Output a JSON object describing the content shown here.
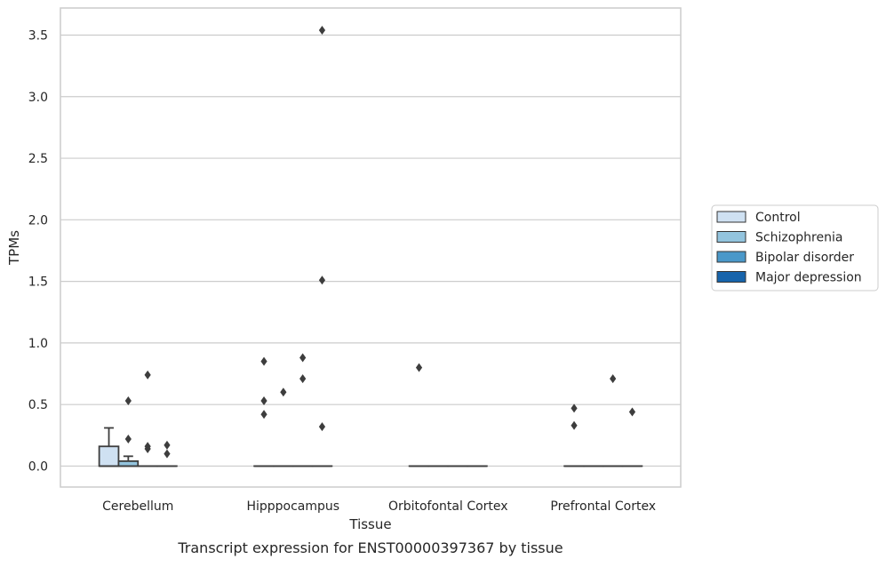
{
  "chart_data": {
    "type": "boxplot",
    "xlabel": "Tissue",
    "ylabel": "TPMs",
    "caption": "Transcript expression for ENST00000397367 by tissue",
    "ylim": [
      -0.17,
      3.72
    ],
    "yticks": [
      0.0,
      0.5,
      1.0,
      1.5,
      2.0,
      2.5,
      3.0,
      3.5
    ],
    "ytick_labels": [
      "0.0",
      "0.5",
      "1.0",
      "1.5",
      "2.0",
      "2.5",
      "3.0",
      "3.5"
    ],
    "grid": "horizontal",
    "legend_position": "right",
    "categories": [
      "Cerebellum",
      "Hipppocampus",
      "Orbitofontal Cortex",
      "Prefrontal Cortex"
    ],
    "series": [
      {
        "name": "Control",
        "color": "#cfe1f2",
        "boxes": [
          {
            "q1": 0.0,
            "median": 0.0,
            "q3": 0.16,
            "whisker_low": 0.0,
            "whisker_high": 0.31,
            "outliers": []
          },
          {
            "q1": 0.0,
            "median": 0.0,
            "q3": 0.0,
            "whisker_low": 0.0,
            "whisker_high": 0.0,
            "outliers": [
              0.85,
              0.53,
              0.42
            ]
          },
          {
            "q1": 0.0,
            "median": 0.0,
            "q3": 0.0,
            "whisker_low": 0.0,
            "whisker_high": 0.0,
            "outliers": [
              0.8
            ]
          },
          {
            "q1": 0.0,
            "median": 0.0,
            "q3": 0.0,
            "whisker_low": 0.0,
            "whisker_high": 0.0,
            "outliers": [
              0.47,
              0.33
            ]
          }
        ]
      },
      {
        "name": "Schizophrenia",
        "color": "#93c4de",
        "boxes": [
          {
            "q1": 0.0,
            "median": 0.0,
            "q3": 0.04,
            "whisker_low": 0.0,
            "whisker_high": 0.08,
            "outliers": [
              0.53,
              0.22
            ]
          },
          {
            "q1": 0.0,
            "median": 0.0,
            "q3": 0.0,
            "whisker_low": 0.0,
            "whisker_high": 0.0,
            "outliers": [
              0.6
            ]
          },
          {
            "q1": 0.0,
            "median": 0.0,
            "q3": 0.0,
            "whisker_low": 0.0,
            "whisker_high": 0.0,
            "outliers": []
          },
          {
            "q1": 0.0,
            "median": 0.0,
            "q3": 0.0,
            "whisker_low": 0.0,
            "whisker_high": 0.0,
            "outliers": []
          }
        ]
      },
      {
        "name": "Bipolar disorder",
        "color": "#4a98c9",
        "boxes": [
          {
            "q1": 0.0,
            "median": 0.0,
            "q3": 0.0,
            "whisker_low": 0.0,
            "whisker_high": 0.0,
            "outliers": [
              0.74,
              0.16,
              0.14
            ]
          },
          {
            "q1": 0.0,
            "median": 0.0,
            "q3": 0.0,
            "whisker_low": 0.0,
            "whisker_high": 0.0,
            "outliers": [
              0.88,
              0.71
            ]
          },
          {
            "q1": 0.0,
            "median": 0.0,
            "q3": 0.0,
            "whisker_low": 0.0,
            "whisker_high": 0.0,
            "outliers": []
          },
          {
            "q1": 0.0,
            "median": 0.0,
            "q3": 0.0,
            "whisker_low": 0.0,
            "whisker_high": 0.0,
            "outliers": [
              0.71
            ]
          }
        ]
      },
      {
        "name": "Major depression",
        "color": "#1764ab",
        "boxes": [
          {
            "q1": 0.0,
            "median": 0.0,
            "q3": 0.0,
            "whisker_low": 0.0,
            "whisker_high": 0.0,
            "outliers": [
              0.17,
              0.1
            ]
          },
          {
            "q1": 0.0,
            "median": 0.0,
            "q3": 0.0,
            "whisker_low": 0.0,
            "whisker_high": 0.0,
            "outliers": [
              3.54,
              1.51,
              0.32
            ]
          },
          {
            "q1": 0.0,
            "median": 0.0,
            "q3": 0.0,
            "whisker_low": 0.0,
            "whisker_high": 0.0,
            "outliers": []
          },
          {
            "q1": 0.0,
            "median": 0.0,
            "q3": 0.0,
            "whisker_low": 0.0,
            "whisker_high": 0.0,
            "outliers": [
              0.44
            ]
          }
        ]
      }
    ]
  }
}
